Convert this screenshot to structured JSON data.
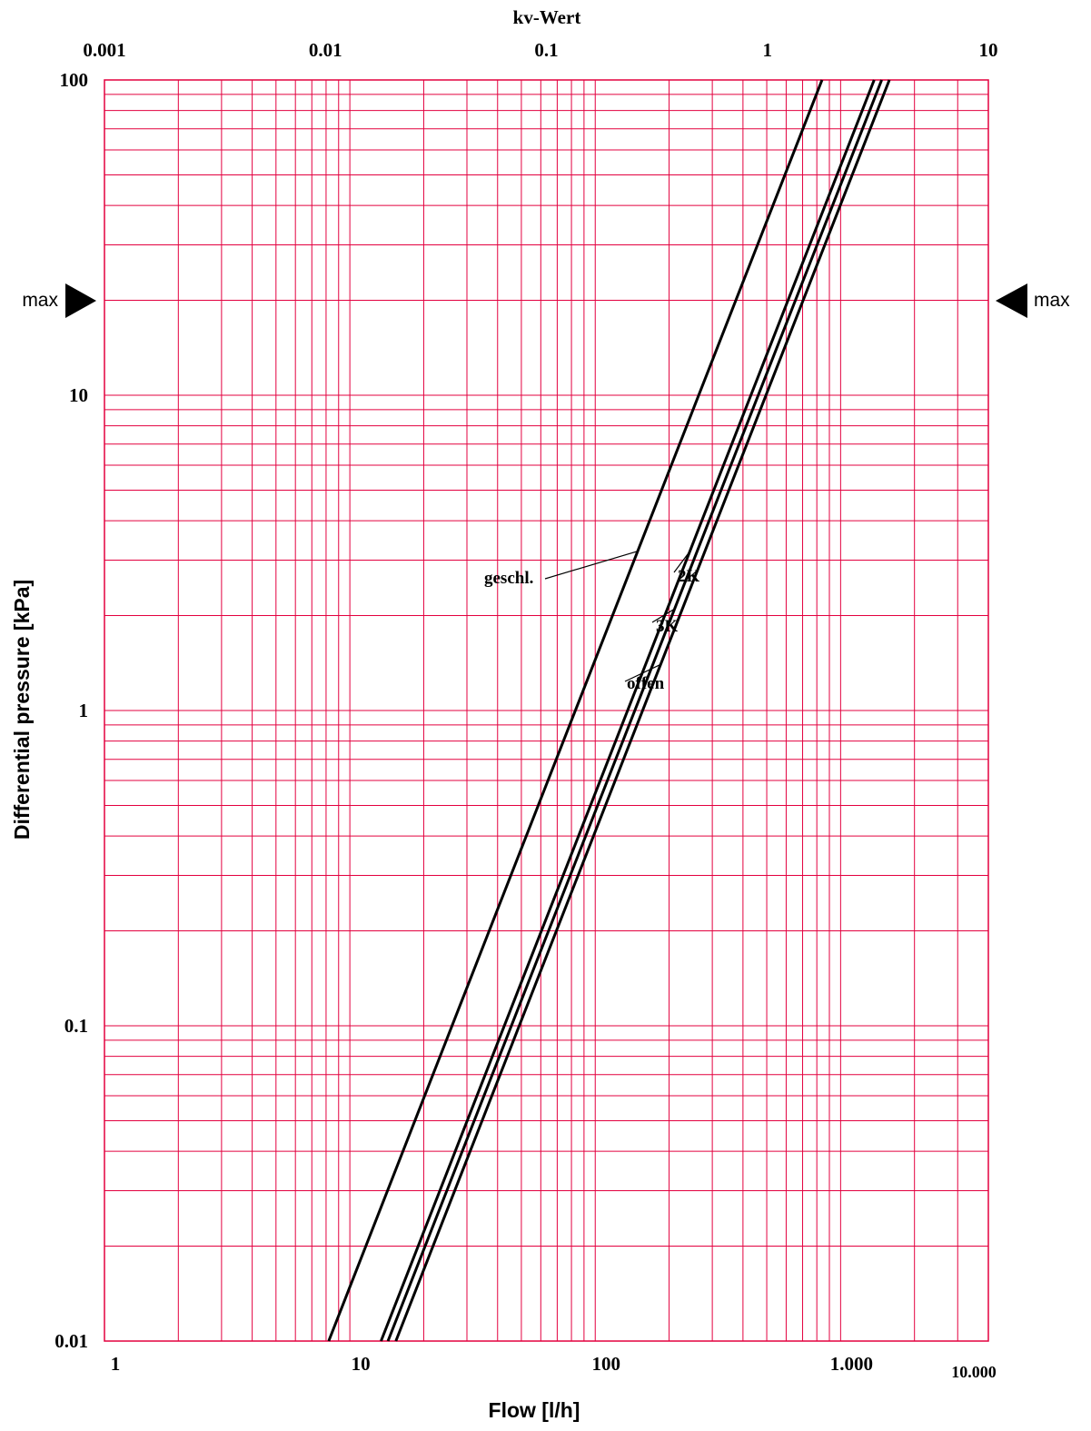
{
  "chart_data": {
    "type": "line",
    "x_scale": "log",
    "y_scale": "log",
    "xlabel": "Flow [l/h]",
    "ylabel": "Differential pressure [kPa]",
    "top_axis_label": "kv-Wert",
    "xlim": [
      1,
      4000
    ],
    "ylim": [
      0.01,
      100
    ],
    "top_axis_lim": [
      0.001,
      10
    ],
    "x_tick_labels": [
      "1",
      "10",
      "100",
      "1.000",
      "10.000"
    ],
    "y_tick_labels": [
      "100",
      "10",
      "1",
      "0.1",
      "0.01"
    ],
    "top_tick_labels": [
      "0.001",
      "0.01",
      "0.1",
      "1",
      "10"
    ],
    "grid": true,
    "grid_color": "#e3003f",
    "line_color": "#000000",
    "series": [
      {
        "name": "geschl.",
        "x": [
          8.2,
          840
        ],
        "y": [
          0.01,
          100
        ]
      },
      {
        "name": "2K",
        "x": [
          13.4,
          1370
        ],
        "y": [
          0.01,
          100
        ]
      },
      {
        "name": "3K",
        "x": [
          14.3,
          1470
        ],
        "y": [
          0.01,
          100
        ]
      },
      {
        "name": "offen",
        "x": [
          15.4,
          1580
        ],
        "y": [
          0.01,
          100
        ]
      }
    ],
    "max_marker": {
      "label": "max",
      "value": 20
    }
  }
}
